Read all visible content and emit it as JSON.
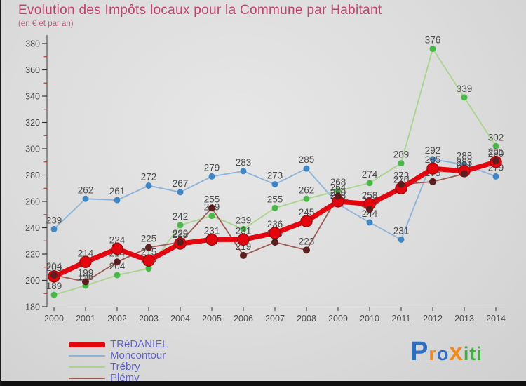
{
  "header": {
    "title": "Evolution des Impôts locaux pour la Commune par Habitant",
    "subtitle": "(en € et par an)"
  },
  "chart_data": {
    "type": "line",
    "x": [
      2000,
      2001,
      2002,
      2003,
      2004,
      2005,
      2006,
      2007,
      2008,
      2009,
      2010,
      2011,
      2012,
      2013,
      2014
    ],
    "ylim": [
      180,
      380
    ],
    "y_major_step": 20,
    "y_minor_step_offset": 10,
    "grid": false,
    "legend_position": "bottom-left",
    "label_color": "#4c4c4c",
    "series": [
      {
        "id": "tredaniel",
        "name": "TRéDANIEL",
        "color": "#e5050f",
        "dot_color": "#e5050f",
        "dot_stroke": "#9e0b0f",
        "width": 7,
        "r": 8,
        "values": [
          203,
          214,
          224,
          215,
          228,
          231,
          231,
          236,
          245,
          260,
          258,
          270,
          285,
          283,
          290
        ]
      },
      {
        "id": "moncontour",
        "name": "Moncontour",
        "color": "#8cb4d9",
        "dot_color": "#3f86c6",
        "dot_stroke": "none",
        "width": 1.8,
        "r": 4.5,
        "values": [
          239,
          262,
          261,
          272,
          267,
          279,
          283,
          273,
          285,
          258,
          244,
          231,
          292,
          288,
          279
        ]
      },
      {
        "id": "trebry",
        "name": "Trébry",
        "color": "#a9d48c",
        "dot_color": "#46b946",
        "dot_stroke": "none",
        "width": 1.8,
        "r": 4.5,
        "values": [
          189,
          196,
          204,
          209,
          242,
          249,
          239,
          255,
          262,
          268,
          274,
          289,
          376,
          339,
          302
        ]
      },
      {
        "id": "plemy",
        "name": "Plémy",
        "color": "#9b5b55",
        "dot_color": "#5c1f1f",
        "dot_stroke": "none",
        "width": 1.8,
        "r": 5,
        "values": [
          204,
          199,
          214,
          225,
          229,
          255,
          219,
          229,
          223,
          264,
          254,
          273,
          275,
          281,
          291
        ]
      }
    ]
  },
  "axis_style": {
    "axis_color": "#555555",
    "major_tick_color": "#333333",
    "minor_tick_color": "#b5413a",
    "tick_label_color": "#4c4c4c"
  },
  "logo": {
    "text": "Proxiti",
    "letters": [
      {
        "ch": "P",
        "color": "#2e6fc4",
        "size": 38,
        "bold": false
      },
      {
        "ch": "r",
        "color": "#f18a1d",
        "size": 27,
        "bold": false
      },
      {
        "ch": "o",
        "color": "#2e6fc4",
        "size": 27,
        "bold": false
      },
      {
        "ch": "x",
        "color": "#f18a1d",
        "size": 35,
        "bold": true
      },
      {
        "ch": "i",
        "color": "#3faf3f",
        "size": 27,
        "bold": false
      },
      {
        "ch": "t",
        "color": "#3faf3f",
        "size": 27,
        "bold": false
      },
      {
        "ch": "i",
        "color": "#3faf3f",
        "size": 27,
        "bold": false
      }
    ]
  }
}
